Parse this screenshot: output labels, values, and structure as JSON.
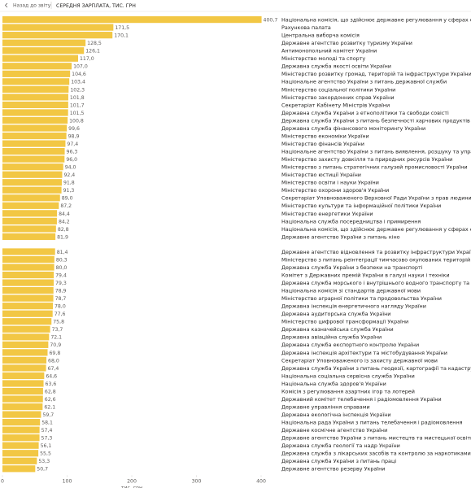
{
  "header": {
    "back_button": "Назад до звіту"
  },
  "chart_data": {
    "type": "barh",
    "title": "СЕРЕДНЯ ЗАРПЛАТА, ТИС. ГРН",
    "xlabel": "тис. грн",
    "color": "#f2c744",
    "xlim": [
      0,
      400
    ],
    "xticks": [
      0,
      100,
      200,
      300,
      400
    ],
    "grid": false,
    "categories": [
      "Національна комісія, що здійснює державне регулювання у сферах ене...",
      "Рахункова палата",
      "Центральна виборча комісія",
      "Державне агентство розвитку туризму України",
      "Антимонопольний комітет України",
      "Міністерство молоді та спорту",
      "Державна служба якості освіти України",
      "Міністерство розвитку громад, територій та інфраструктури України",
      "Національне агентство України з питань державної служби",
      "Міністерство соціальної політики України",
      "Міністерство закордонних справ України",
      "Секретаріат Кабінету Міністрів України",
      "Державна служба України з етнополітики та свободи совісті",
      "Державна служба України з питань безпечності харчових продуктів та з...",
      "Державна служба фінансового моніторингу України",
      "Міністерство економіки України",
      "Міністерство фінансів України",
      "Національне агентство України з питань виявлення, розшуку та управлі...",
      "Міністерство захисту довкілля та природних ресурсів України",
      "Міністерство з питань стратегічних галузей промисловості України",
      "Міністерство юстиції України",
      "Міністерство освіти і науки України",
      "Міністерство охорони здоров'я України",
      "Секретаріат Уповноваженого Верховної Ради України з прав людини",
      "Міністерство культури та інформаційної політики України",
      "Міністерство енергетики України",
      "Національна служба посередництва і примирення",
      "Національна комісія, що здійснює державне регулювання у сферах еле...",
      "Державне агентство України з питань кіно",
      "Державне агентство відновлення та розвитку інфраструктури України",
      "Міністерство з питань реінтеграції тимчасово окупованих територій Ук...",
      "Державна служба України з безпеки на транспорті",
      "Комітет з Державних премій України в галузі науки і техніки",
      "Державна служба морського і внутрішнього водного транспорту та суд...",
      "Національна комісія зі стандартів державної мови",
      "Міністерство аграрної політики та продовольства України",
      "Державна інспекція енергетичного нагляду України",
      "Державна аудиторська служба України",
      "Міністерство цифрової трансформації України",
      "Державна казначейська служба України",
      "Державна авіаційна служба України",
      "Державна служба експортного контролю України",
      "Державна інспекція архітектури та містобудування України",
      "Секретаріат Уповноваженого із захисту державної мови",
      "Державна служба України з питань геодезії, картографії та кадастру",
      "Національна соціальна сервісна служба України",
      "Національна служба здоров'я України",
      "Комісія з регулювання азартних ігор та лотерей",
      "Державний комітет телебачення і радіомовлення України",
      "Державне управління справами",
      "Державна екологічна інспекція України",
      "Національна рада України з питань телебачення і радіомовлення",
      "Державне космічне агентство України",
      "Державне агентство України з питань мистецтв та мистецької освіти",
      "Державна служба геології та надр України",
      "Державна служба з лікарських засобів та контролю за наркотиками",
      "Державна служба України з питань праці",
      "Державне агентство резерву України"
    ],
    "values": [
      400.7,
      171.5,
      170.1,
      128.5,
      126.1,
      117.0,
      107.0,
      104.6,
      103.4,
      102.3,
      101.8,
      101.7,
      101.5,
      100.8,
      99.6,
      98.9,
      97.4,
      96.3,
      96.0,
      94.0,
      92.4,
      91.8,
      91.3,
      89.0,
      87.2,
      84.4,
      84.2,
      82.8,
      81.9,
      81.4,
      80.3,
      80.0,
      79.4,
      79.3,
      78.9,
      78.7,
      78.0,
      77.6,
      75.8,
      73.7,
      72.1,
      70.9,
      69.8,
      68.0,
      67.4,
      64.6,
      63.6,
      62.8,
      62.6,
      62.1,
      59.7,
      58.1,
      57.4,
      57.3,
      56.1,
      55.5,
      53.3,
      50.7
    ],
    "value_labels": [
      "400,7",
      "171,5",
      "170,1",
      "128,5",
      "126,1",
      "117,0",
      "107,0",
      "104,6",
      "103,4",
      "102,3",
      "101,8",
      "101,7",
      "101,5",
      "100,8",
      "99,6",
      "98,9",
      "97,4",
      "96,3",
      "96,0",
      "94,0",
      "92,4",
      "91,8",
      "91,3",
      "89,0",
      "87,2",
      "84,4",
      "84,2",
      "82,8",
      "81,9",
      "81,4",
      "80,3",
      "80,0",
      "79,4",
      "79,3",
      "78,9",
      "78,7",
      "78,0",
      "77,6",
      "75,8",
      "73,7",
      "72,1",
      "70,9",
      "69,8",
      "68,0",
      "67,4",
      "64,6",
      "63,6",
      "62,8",
      "62,6",
      "62,1",
      "59,7",
      "58,1",
      "57,4",
      "57,3",
      "56,1",
      "55,5",
      "53,3",
      "50,7"
    ]
  }
}
